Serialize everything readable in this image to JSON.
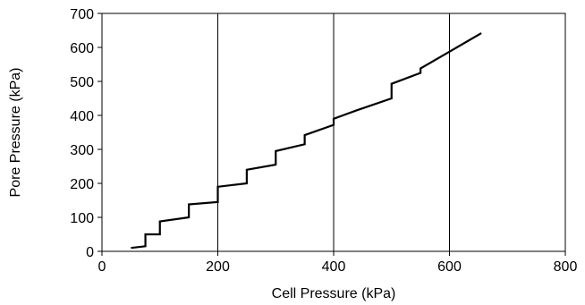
{
  "chart_data": {
    "type": "line",
    "xlabel": "Cell Pressure (kPa)",
    "ylabel": "Pore Pressure (kPa)",
    "xlim": [
      0,
      800
    ],
    "ylim": [
      0,
      700
    ],
    "xticks": [
      "0",
      "200",
      "400",
      "600",
      "800"
    ],
    "yticks": [
      "0",
      "100",
      "200",
      "300",
      "400",
      "500",
      "600",
      "700"
    ],
    "grid": "vertical",
    "legend": "none",
    "line_color": "#000000",
    "series": [
      {
        "x": [
          50,
          75,
          75,
          100,
          100,
          150,
          150,
          200,
          200,
          250,
          250,
          300,
          300,
          350,
          350,
          400,
          400,
          440,
          500,
          500,
          550,
          550,
          655
        ],
        "y": [
          10,
          15,
          50,
          50,
          88,
          100,
          138,
          145,
          190,
          200,
          240,
          255,
          295,
          315,
          342,
          372,
          390,
          415,
          450,
          493,
          525,
          538,
          642
        ]
      }
    ]
  }
}
